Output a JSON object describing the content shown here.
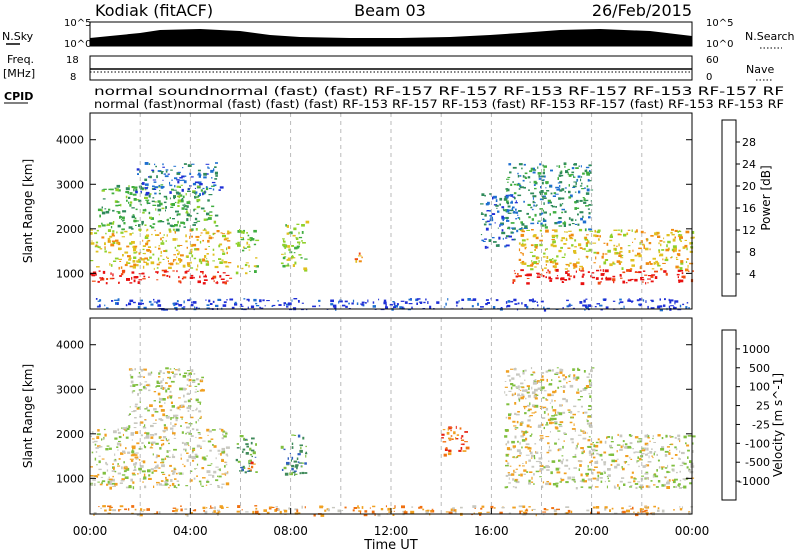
{
  "header": {
    "station": "Kodiak (fitACF)",
    "beam": "Beam 03",
    "date": "26/Feb/2015"
  },
  "left_labels": {
    "nsky": "N.Sky",
    "freq": "Freq.",
    "freq_unit": "[MHz]",
    "cpid": "CPID"
  },
  "right_labels": {
    "nsearch": "N.Search",
    "nave": "Nave"
  },
  "strip_ticks": {
    "noise_left": [
      "10^5",
      "10^0"
    ],
    "noise_right": [
      "10^5",
      "10^0"
    ],
    "freq_left": [
      "18",
      "8"
    ],
    "nave_right": [
      "60",
      "0"
    ]
  },
  "cpid_rows": {
    "row1": "normal soundnormal (fast) (fast) RF-157 RF-157 RF-153 RF-157 RF-153 RF-157 RF",
    "row2": "normal (fast)normal (fast) (fast) (fast) RF-153 RF-157 RF-153 (fast) RF-153 RF-157 (fast) RF-153 RF-153 RF"
  },
  "chart_data": [
    {
      "type": "heatmap",
      "name": "power",
      "ylabel": "Slant Range [km]",
      "yticks": [
        "1000",
        "2000",
        "3000",
        "4000"
      ],
      "ylim": [
        200,
        4600
      ],
      "xlim": [
        0,
        24
      ],
      "colorbar": {
        "label": "Power [dB]",
        "ticks": [
          "28",
          "24",
          "20",
          "16",
          "12",
          "8",
          "4"
        ],
        "colors": [
          "#1e2fd6",
          "#1e6fd0",
          "#2f8a5a",
          "#3fae3f",
          "#8fd02a",
          "#e0c020",
          "#f08a10",
          "#f04a10",
          "#e81010"
        ]
      },
      "regions": [
        {
          "t0": 0.0,
          "t1": 5.8,
          "r0": 800,
          "r1": 1100,
          "level": 8
        },
        {
          "t0": 0.0,
          "t1": 5.5,
          "r0": 1100,
          "r1": 2000,
          "level": 5
        },
        {
          "t0": 0.3,
          "t1": 5.0,
          "r0": 2000,
          "r1": 3000,
          "level": 3
        },
        {
          "t0": 1.8,
          "t1": 5.2,
          "r0": 2800,
          "r1": 3500,
          "level": 1
        },
        {
          "t0": 5.8,
          "t1": 6.6,
          "r0": 1000,
          "r1": 2000,
          "level": 4
        },
        {
          "t0": 7.6,
          "t1": 8.6,
          "r0": 1100,
          "r1": 2200,
          "level": 4
        },
        {
          "t0": 10.5,
          "t1": 11.0,
          "r0": 1250,
          "r1": 1500,
          "level": 6
        },
        {
          "t0": 15.5,
          "t1": 17.0,
          "r0": 1600,
          "r1": 2800,
          "level": 1
        },
        {
          "t0": 16.8,
          "t1": 24.0,
          "r0": 800,
          "r1": 1100,
          "level": 8
        },
        {
          "t0": 17.0,
          "t1": 24.0,
          "r0": 1100,
          "r1": 2000,
          "level": 5
        },
        {
          "t0": 16.5,
          "t1": 20.0,
          "r0": 2000,
          "r1": 3500,
          "level": 2
        },
        {
          "t0": 0.0,
          "t1": 24.0,
          "r0": 200,
          "r1": 450,
          "level": 0
        }
      ]
    },
    {
      "type": "heatmap",
      "name": "velocity",
      "ylabel": "Slant Range [km]",
      "yticks": [
        "1000",
        "2000",
        "3000",
        "4000"
      ],
      "ylim": [
        200,
        4600
      ],
      "xlim": [
        0,
        24
      ],
      "xticks": [
        "00:00",
        "04:00",
        "08:00",
        "12:00",
        "16:00",
        "20:00",
        "00:00"
      ],
      "xlabel": "Time UT",
      "colorbar": {
        "label": "Velocity [m s^-1]",
        "ticks": [
          "1000",
          "500",
          "100",
          "25",
          "-25",
          "-100",
          "-500",
          "-1000"
        ],
        "colors": [
          "#1e2fd6",
          "#2f5fbf",
          "#3f8a5a",
          "#7fbf3f",
          "#c8c8c0",
          "#f0a020",
          "#f07010",
          "#e82010"
        ]
      },
      "regions": [
        {
          "t0": 0.0,
          "t1": 5.5,
          "r0": 800,
          "r1": 2200,
          "level": 4
        },
        {
          "t0": 1.5,
          "t1": 4.5,
          "r0": 2200,
          "r1": 3500,
          "level": 4
        },
        {
          "t0": 5.8,
          "t1": 6.6,
          "r0": 1100,
          "r1": 2000,
          "level": 2
        },
        {
          "t0": 7.6,
          "t1": 8.6,
          "r0": 1100,
          "r1": 2000,
          "level": 2
        },
        {
          "t0": 14.0,
          "t1": 15.0,
          "r0": 1500,
          "r1": 2200,
          "level": 6
        },
        {
          "t0": 16.5,
          "t1": 24.0,
          "r0": 800,
          "r1": 2000,
          "level": 4
        },
        {
          "t0": 16.5,
          "t1": 20.0,
          "r0": 2000,
          "r1": 3500,
          "level": 4
        },
        {
          "t0": 6.2,
          "t1": 6.5,
          "r0": 1000,
          "r1": 1400,
          "level": 6
        },
        {
          "t0": 0.0,
          "t1": 24.0,
          "r0": 200,
          "r1": 400,
          "level": 5
        }
      ]
    }
  ]
}
